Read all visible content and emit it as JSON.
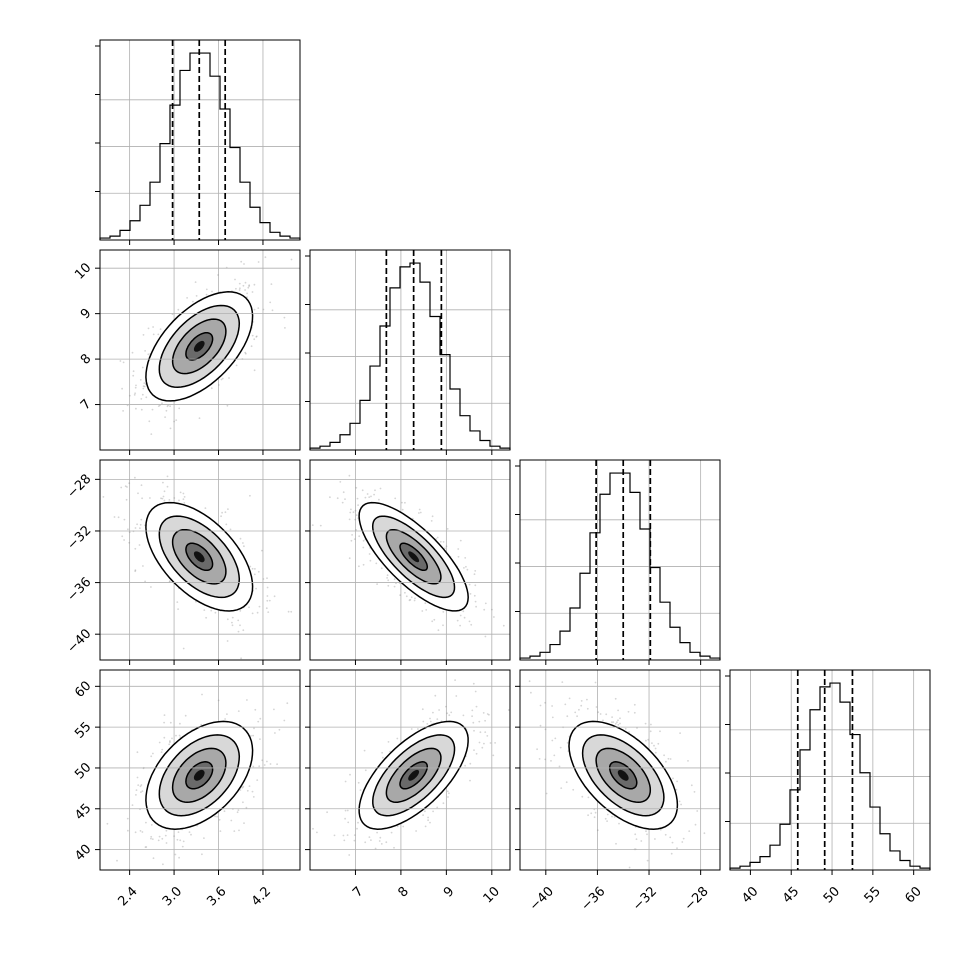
{
  "chart_data": {
    "type": "corner",
    "parameters": [
      {
        "axis_range": [
          2.0,
          4.7
        ],
        "ticks": [
          2.4,
          3.0,
          3.6,
          4.2
        ],
        "tick_labels": [
          "2.4",
          "3.0",
          "3.6",
          "4.2"
        ],
        "quantiles": [
          2.98,
          3.34,
          3.69
        ],
        "mean": 3.34,
        "std": 0.36
      },
      {
        "axis_range": [
          6.0,
          10.4
        ],
        "ticks": [
          7,
          8,
          9,
          10
        ],
        "tick_labels": [
          "7",
          "8",
          "9",
          "10"
        ],
        "quantiles": [
          7.68,
          8.28,
          8.89
        ],
        "mean": 8.28,
        "std": 0.6
      },
      {
        "axis_range": [
          -42.0,
          -26.5
        ],
        "ticks": [
          -40,
          -36,
          -32,
          -28
        ],
        "tick_labels": [
          "−40",
          "−36",
          "−32",
          "−28"
        ],
        "quantiles": [
          -36.1,
          -34.0,
          -31.9
        ],
        "mean": -34.0,
        "std": 2.1
      },
      {
        "axis_range": [
          37.5,
          62.0
        ],
        "ticks": [
          40,
          45,
          50,
          55,
          60
        ],
        "tick_labels": [
          "40",
          "45",
          "50",
          "55",
          "60"
        ],
        "quantiles": [
          45.8,
          49.1,
          52.5
        ],
        "mean": 49.1,
        "std": 3.3
      }
    ],
    "correlations": [
      [
        1.0,
        0.55,
        -0.55,
        0.45
      ],
      [
        0.55,
        1.0,
        -0.75,
        0.65
      ],
      [
        -0.55,
        -0.75,
        1.0,
        -0.55
      ],
      [
        0.45,
        0.65,
        -0.55,
        1.0
      ]
    ],
    "histograms": [
      {
        "param": 0,
        "bins": 20,
        "counts": [
          1,
          2,
          5,
          10,
          18,
          30,
          50,
          70,
          88,
          97,
          97,
          85,
          68,
          48,
          30,
          17,
          9,
          4,
          2,
          1
        ]
      },
      {
        "param": 1,
        "bins": 20,
        "counts": [
          1,
          2,
          4,
          8,
          14,
          26,
          44,
          65,
          85,
          96,
          98,
          88,
          70,
          50,
          32,
          18,
          10,
          5,
          2,
          1
        ]
      },
      {
        "param": 2,
        "bins": 20,
        "counts": [
          1,
          2,
          4,
          8,
          15,
          27,
          45,
          66,
          86,
          97,
          97,
          87,
          68,
          48,
          30,
          17,
          9,
          4,
          2,
          1
        ]
      },
      {
        "param": 3,
        "bins": 20,
        "counts": [
          1,
          2,
          4,
          7,
          13,
          24,
          42,
          63,
          84,
          96,
          98,
          88,
          71,
          51,
          33,
          19,
          10,
          5,
          2,
          1
        ]
      }
    ],
    "contour_sigma_levels": [
      0.5,
      1.0,
      1.5,
      2.0
    ],
    "grid": true,
    "legend": "none"
  }
}
